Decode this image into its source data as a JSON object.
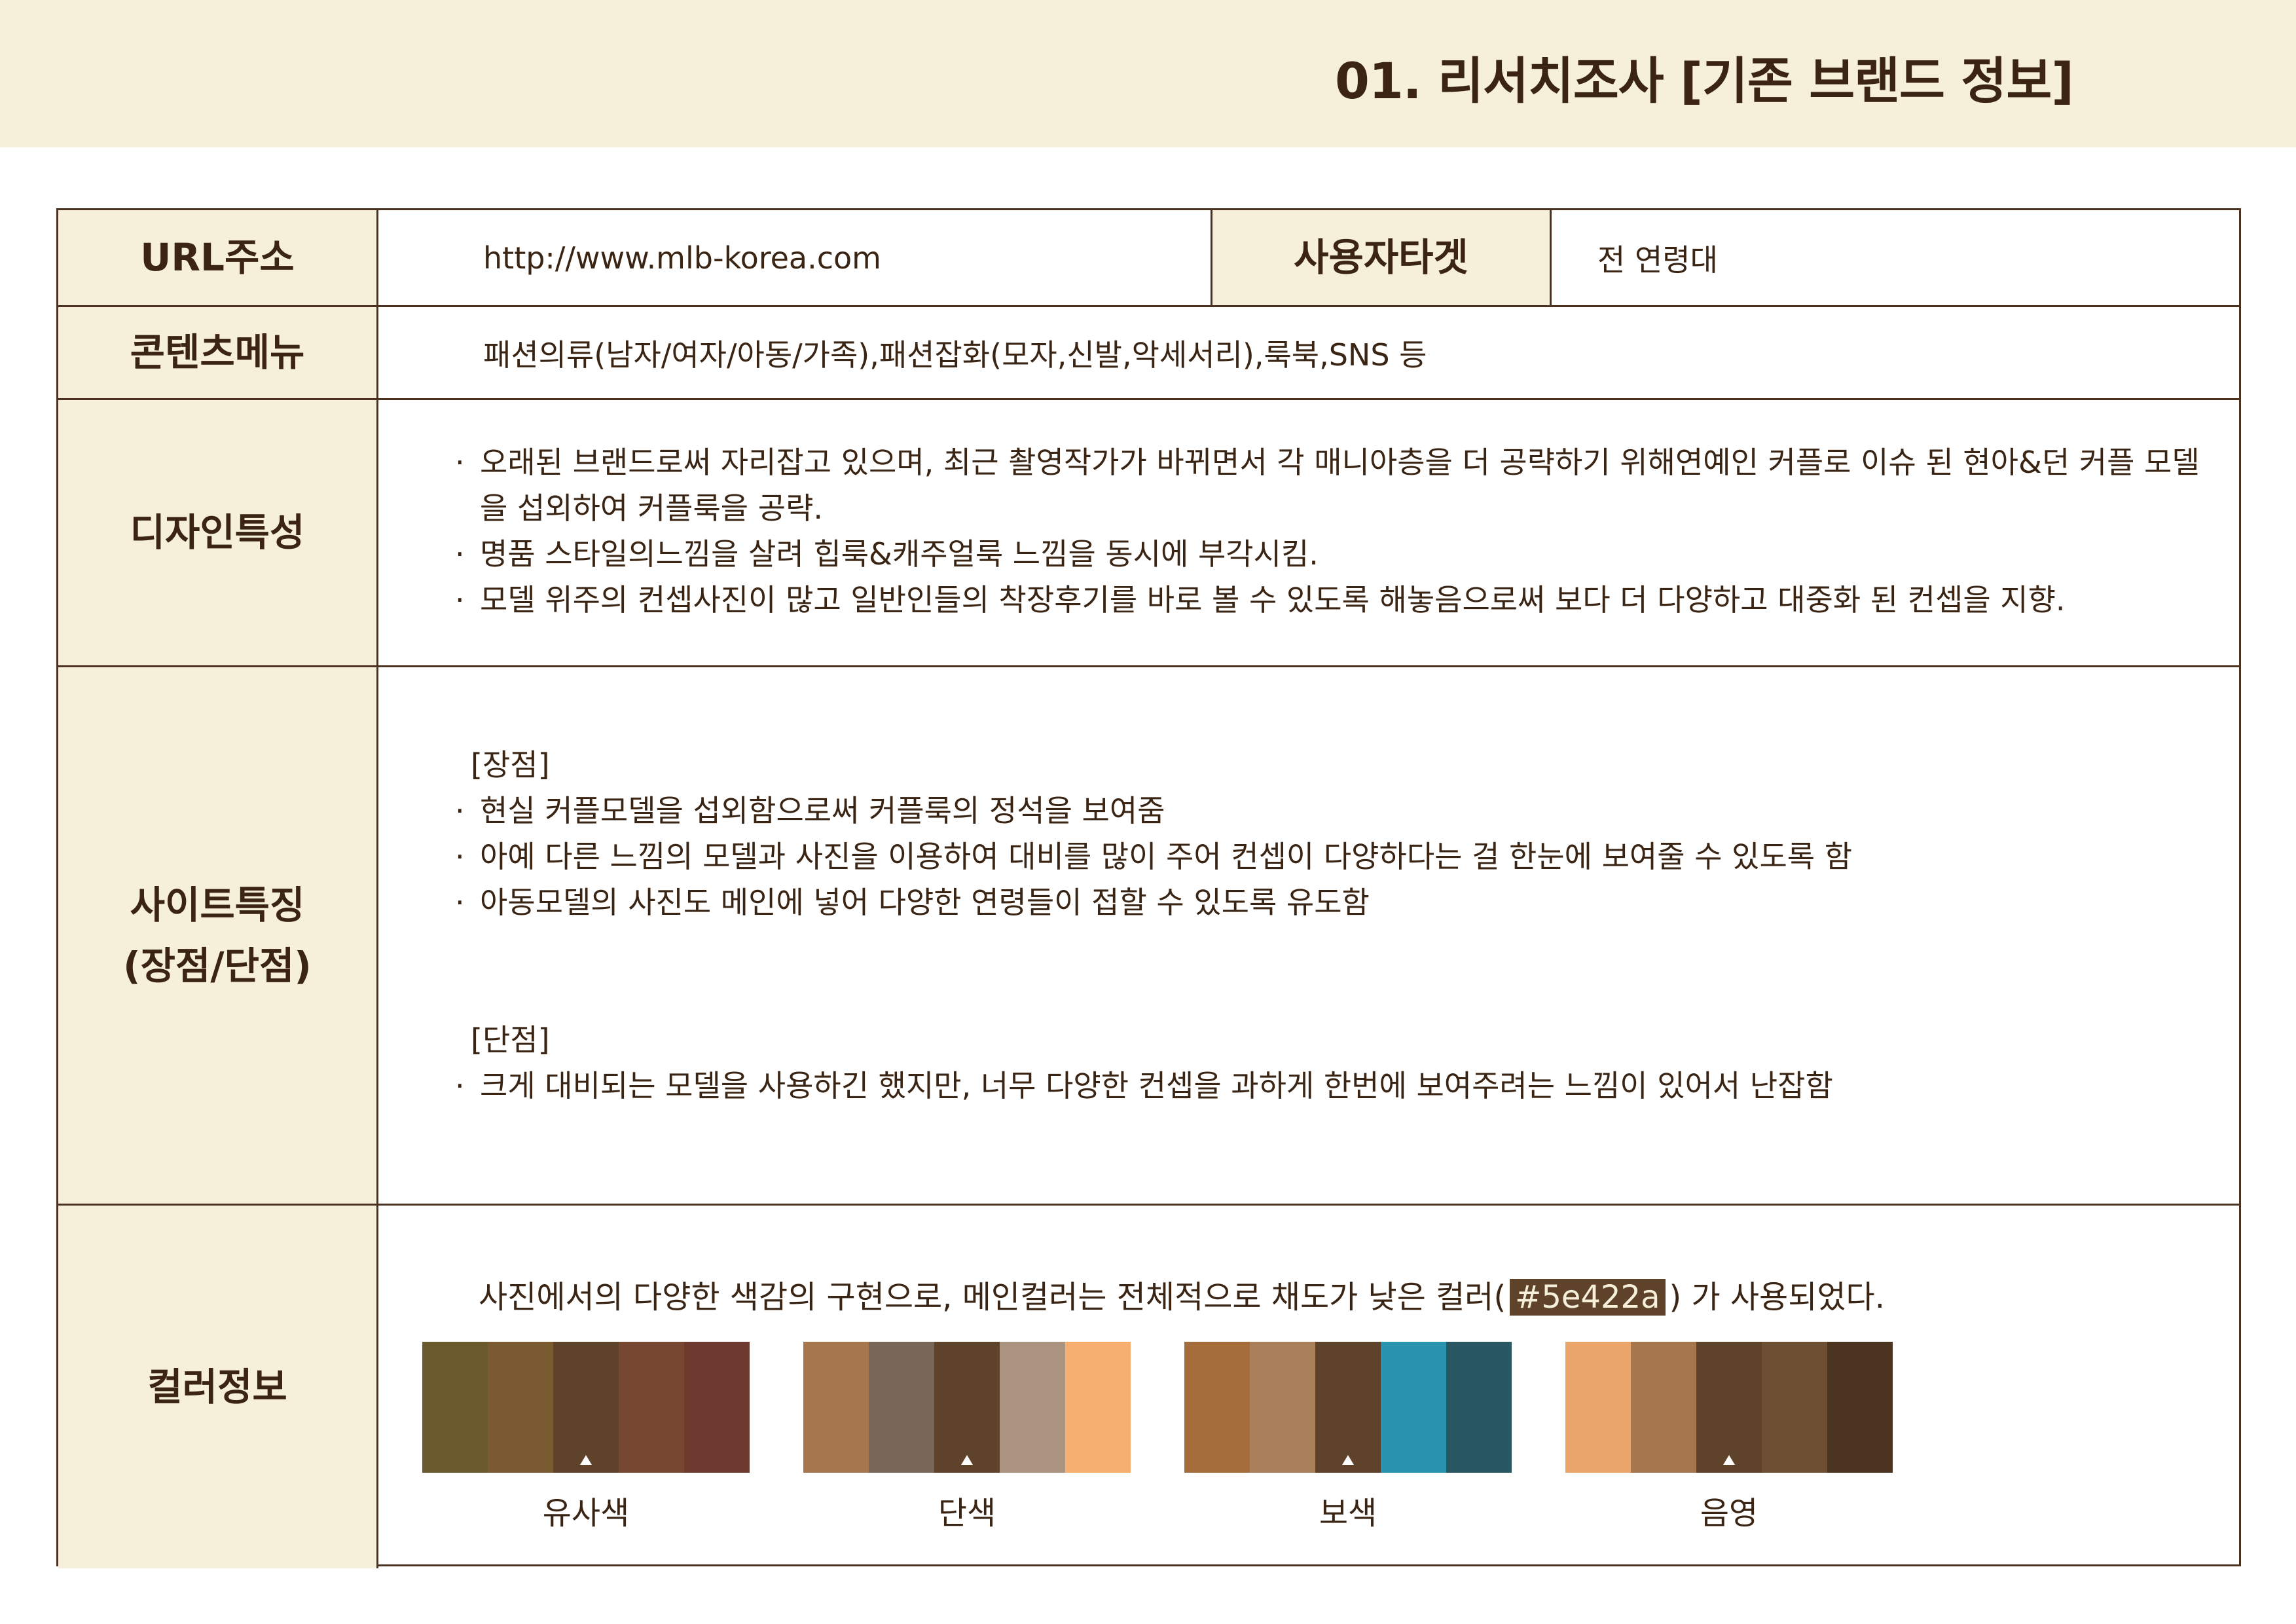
{
  "page_title": "01. 리서치조사 [기존 브랜드 정보]",
  "row_url": {
    "label": "URL주소",
    "value": "http://www.mlb-korea.com",
    "target_label": "사용자타겟",
    "target_value": "전 연령대"
  },
  "row_contents": {
    "label": "콘텐츠메뉴",
    "value": "패션의류(남자/여자/아동/가족),패션잡화(모자,신발,악세서리),룩북,SNS 등"
  },
  "row_design": {
    "label": "디자인특성",
    "bullets": [
      "오래된 브랜드로써 자리잡고 있으며, 최근 촬영작가가 바뀌면서 각 매니아층을 더 공략하기 위해연예인 커플로 이슈 된 현아&던 커플 모델을 섭외하여 커플룩을 공략.",
      "명품 스타일의느낌을 살려 힙룩&캐주얼룩 느낌을 동시에 부각시킴.",
      "모델 위주의 컨셉사진이 많고 일반인들의 착장후기를 바로 볼 수 있도록 해놓음으로써 보다 더 다양하고 대중화 된 컨셉을 지향."
    ]
  },
  "row_site": {
    "label_line1": "사이트특징",
    "label_line2": "(장점/단점)",
    "pros_title": "[장점]",
    "pros": [
      "현실 커플모델을 섭외함으로써 커플룩의 정석을 보여줌",
      "아예 다른 느낌의 모델과 사진을 이용하여 대비를 많이 주어 컨셉이 다양하다는 걸 한눈에 보여줄 수 있도록 함",
      "아동모델의 사진도 메인에 넣어 다양한 연령들이 접할 수 있도록 유도함"
    ],
    "cons_title": "[단점]",
    "cons": [
      "크게 대비되는 모델을 사용하긴 했지만, 너무 다양한 컨셉을 과하게 한번에 보여주려는 느낌이 있어서 난잡함"
    ]
  },
  "row_color": {
    "label": "컬러정보",
    "intro_before": "사진에서의 다양한 색감의 구현으로, 메인컬러는 전체적으로 채도가 낮은 컬러(",
    "main_hex": "#5e422a",
    "intro_after": ") 가 사용되었다.",
    "palettes": [
      {
        "name": "유사색",
        "colors": [
          "#6b5a2d",
          "#7a5b31",
          "#5e422a",
          "#784731",
          "#6e3a2f"
        ]
      },
      {
        "name": "단색",
        "colors": [
          "#a6774d",
          "#786756",
          "#5e422a",
          "#ab9480",
          "#f6af6f"
        ]
      },
      {
        "name": "보색",
        "colors": [
          "#a66d3c",
          "#a98059",
          "#5e422a",
          "#2994ae",
          "#295862"
        ]
      },
      {
        "name": "음영",
        "colors": [
          "#eaa66a",
          "#a6774d",
          "#5e422a",
          "#6e4f34",
          "#4b3420"
        ]
      }
    ]
  },
  "bullet_symbol": "·"
}
